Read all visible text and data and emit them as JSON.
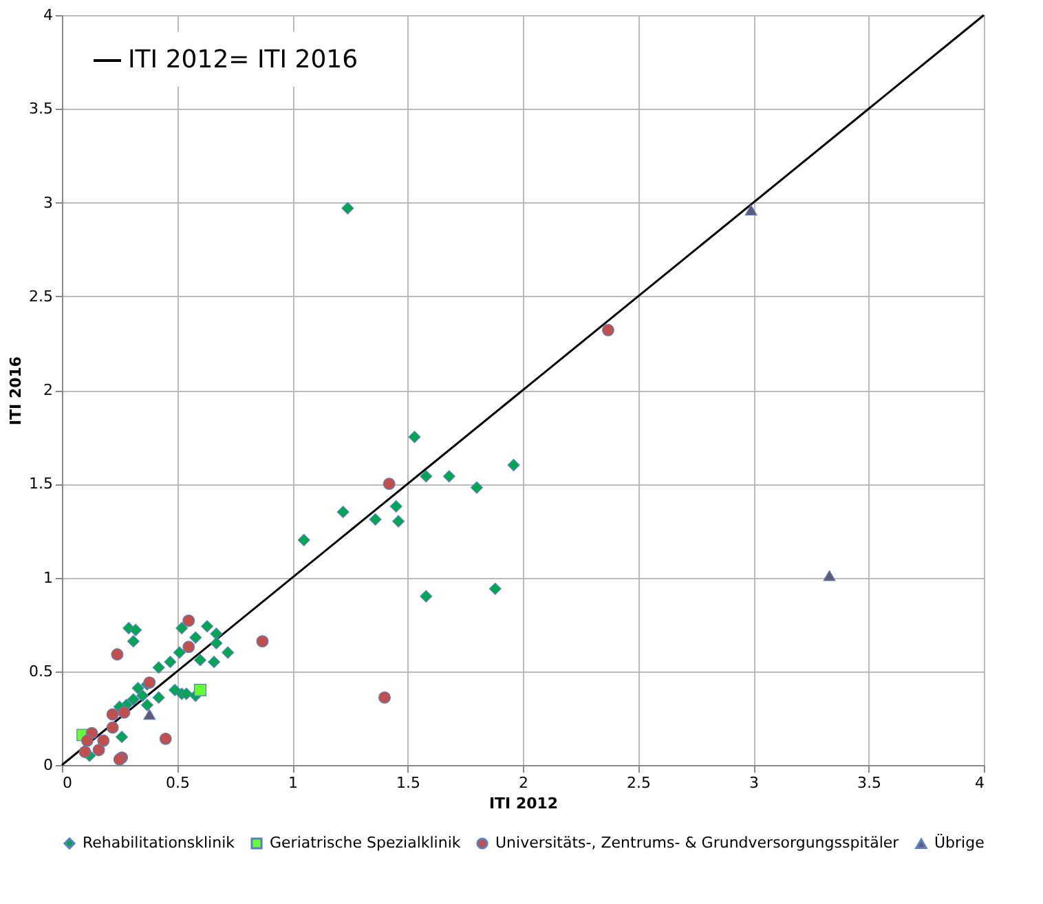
{
  "chart_data": {
    "type": "scatter",
    "xlabel": "ITI 2012",
    "ylabel": "ITI 2016",
    "xlim": [
      0,
      4
    ],
    "ylim": [
      0,
      4
    ],
    "xticks": [
      0,
      0.5,
      1,
      1.5,
      2,
      2.5,
      3,
      3.5,
      4
    ],
    "yticks": [
      0,
      0.5,
      1,
      1.5,
      2,
      2.5,
      3,
      3.5,
      4
    ],
    "grid": true,
    "legend": "bottom",
    "series": [
      {
        "name": "Rehabilitationsklinik",
        "marker": "diamond",
        "color": "#00a651",
        "x": [
          1.24,
          1.53,
          1.58,
          1.68,
          1.8,
          1.96,
          1.22,
          1.05,
          1.36,
          1.45,
          1.46,
          1.58,
          1.88,
          0.29,
          0.32,
          0.31,
          0.52,
          0.58,
          0.63,
          0.67,
          0.67,
          0.72,
          0.6,
          0.66,
          0.51,
          0.47,
          0.42,
          0.37,
          0.33,
          0.35,
          0.42,
          0.31,
          0.28,
          0.25,
          0.49,
          0.52,
          0.54,
          0.58,
          0.37,
          0.26,
          0.12
        ],
        "values": [
          2.97,
          1.75,
          1.54,
          1.54,
          1.48,
          1.6,
          1.35,
          1.2,
          1.31,
          1.38,
          1.3,
          0.9,
          0.94,
          0.73,
          0.72,
          0.66,
          0.73,
          0.68,
          0.74,
          0.7,
          0.65,
          0.6,
          0.56,
          0.55,
          0.6,
          0.55,
          0.52,
          0.43,
          0.41,
          0.37,
          0.36,
          0.35,
          0.32,
          0.31,
          0.4,
          0.38,
          0.38,
          0.37,
          0.32,
          0.15,
          0.05
        ]
      },
      {
        "name": "Geriatrische Spezialklinik",
        "marker": "square",
        "color": "#66ff33",
        "x": [
          0.09,
          0.6
        ],
        "values": [
          0.16,
          0.4
        ]
      },
      {
        "name": "Universitäts-, Zentrums- & Grundversorgungsspitäler",
        "marker": "circle",
        "color": "#c0504d",
        "x": [
          1.42,
          2.37,
          1.4,
          0.87,
          0.55,
          0.55,
          0.24,
          0.38,
          0.22,
          0.27,
          0.22,
          0.13,
          0.18,
          0.16,
          0.1,
          0.45,
          0.26,
          0.25,
          0.11
        ],
        "values": [
          1.5,
          2.32,
          0.36,
          0.66,
          0.77,
          0.63,
          0.59,
          0.44,
          0.27,
          0.28,
          0.2,
          0.17,
          0.13,
          0.08,
          0.07,
          0.14,
          0.04,
          0.03,
          0.13
        ]
      },
      {
        "name": "Übrige",
        "marker": "triangle",
        "color": "#5f5a78",
        "x": [
          2.99,
          3.33,
          0.38
        ],
        "values": [
          2.96,
          1.01,
          0.27
        ]
      },
      {
        "name": "ITI 2012= ITI 2016",
        "type": "line",
        "color": "#000000",
        "line_style": "solid",
        "x": [
          0,
          4
        ],
        "values": [
          0,
          4
        ]
      }
    ]
  }
}
